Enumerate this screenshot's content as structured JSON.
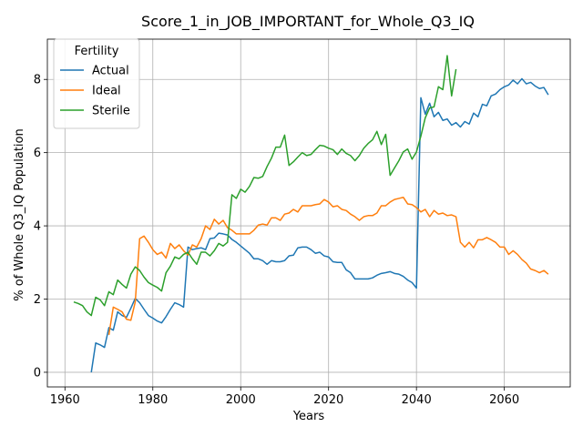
{
  "chart_data": {
    "type": "line",
    "title": "Score_1_in_JOB_IMPORTANT_for_Whole_Q3_IQ",
    "xlabel": "Years",
    "ylabel": "% of Whole Q3_IQ Population",
    "xlim": [
      1956,
      2075
    ],
    "ylim": [
      -0.4,
      9.1
    ],
    "xticks": [
      1960,
      1980,
      2000,
      2020,
      2040,
      2060
    ],
    "yticks": [
      0,
      2,
      4,
      6,
      8
    ],
    "grid": true,
    "legend": {
      "title": "Fertility",
      "position": "top-left"
    },
    "series": [
      {
        "name": "Actual",
        "color": "#1f77b4",
        "x": [
          1966,
          1967,
          1968,
          1969,
          1970,
          1971,
          1972,
          1973,
          1974,
          1975,
          1976,
          1977,
          1978,
          1979,
          1980,
          1981,
          1982,
          1983,
          1984,
          1985,
          1986,
          1987,
          1988,
          1989,
          1990,
          1991,
          1992,
          1993,
          1994,
          1995,
          1996,
          1997,
          1998,
          1999,
          2000,
          2001,
          2002,
          2003,
          2004,
          2005,
          2006,
          2007,
          2008,
          2009,
          2010,
          2011,
          2012,
          2013,
          2014,
          2015,
          2016,
          2017,
          2018,
          2019,
          2020,
          2021,
          2022,
          2023,
          2024,
          2025,
          2026,
          2027,
          2028,
          2029,
          2030,
          2031,
          2032,
          2033,
          2034,
          2035,
          2036,
          2037,
          2038,
          2039,
          2040,
          2041,
          2042,
          2043,
          2044,
          2045,
          2046,
          2047,
          2048,
          2049,
          2050,
          2051,
          2052,
          2053,
          2054,
          2055,
          2056,
          2057,
          2058,
          2059,
          2060,
          2061,
          2062,
          2063,
          2064,
          2065,
          2066,
          2067,
          2068,
          2069,
          2070
        ],
        "values": [
          0,
          0.8,
          0.75,
          0.68,
          1.22,
          1.15,
          1.65,
          1.55,
          1.5,
          1.75,
          2.02,
          1.9,
          1.72,
          1.55,
          1.48,
          1.4,
          1.35,
          1.52,
          1.72,
          1.9,
          1.85,
          1.78,
          3.42,
          3.35,
          3.38,
          3.4,
          3.35,
          3.65,
          3.67,
          3.8,
          3.78,
          3.75,
          3.63,
          3.55,
          3.45,
          3.35,
          3.25,
          3.1,
          3.1,
          3.05,
          2.95,
          3.05,
          3.02,
          3.02,
          3.05,
          3.18,
          3.2,
          3.4,
          3.42,
          3.42,
          3.35,
          3.25,
          3.28,
          3.18,
          3.15,
          3.02,
          3.0,
          3.0,
          2.8,
          2.72,
          2.55,
          2.55,
          2.55,
          2.55,
          2.58,
          2.65,
          2.7,
          2.72,
          2.75,
          2.7,
          2.68,
          2.62,
          2.52,
          2.45,
          2.3,
          7.5,
          7.05,
          7.35,
          6.98,
          7.1,
          6.88,
          6.92,
          6.75,
          6.82,
          6.7,
          6.85,
          6.78,
          7.08,
          6.98,
          7.32,
          7.28,
          7.55,
          7.6,
          7.72,
          7.8,
          7.85,
          7.98,
          7.88,
          8.02,
          7.88,
          7.92,
          7.82,
          7.75,
          7.78,
          7.58
        ]
      },
      {
        "name": "Ideal",
        "color": "#ff7f0e",
        "x": [
          1970,
          1971,
          1972,
          1973,
          1974,
          1975,
          1976,
          1977,
          1978,
          1979,
          1980,
          1981,
          1982,
          1983,
          1984,
          1985,
          1986,
          1987,
          1988,
          1989,
          1990,
          1991,
          1992,
          1993,
          1994,
          1995,
          1996,
          1997,
          1998,
          1999,
          2000,
          2001,
          2002,
          2003,
          2004,
          2005,
          2006,
          2007,
          2008,
          2009,
          2010,
          2011,
          2012,
          2013,
          2014,
          2015,
          2016,
          2017,
          2018,
          2019,
          2020,
          2021,
          2022,
          2023,
          2024,
          2025,
          2026,
          2027,
          2028,
          2029,
          2030,
          2031,
          2032,
          2033,
          2034,
          2035,
          2036,
          2037,
          2038,
          2039,
          2040,
          2041,
          2042,
          2043,
          2044,
          2045,
          2046,
          2047,
          2048,
          2049,
          2050,
          2051,
          2052,
          2053,
          2054,
          2055,
          2056,
          2057,
          2058,
          2059,
          2060,
          2061,
          2062,
          2063,
          2064,
          2065,
          2066,
          2067,
          2068,
          2069,
          2070
        ],
        "values": [
          1.02,
          1.78,
          1.72,
          1.65,
          1.45,
          1.42,
          1.92,
          3.65,
          3.72,
          3.55,
          3.35,
          3.22,
          3.28,
          3.12,
          3.52,
          3.38,
          3.48,
          3.32,
          3.2,
          3.48,
          3.42,
          3.65,
          4.0,
          3.9,
          4.18,
          4.05,
          4.15,
          3.95,
          3.88,
          3.78,
          3.78,
          3.78,
          3.78,
          3.88,
          4.02,
          4.05,
          4.02,
          4.22,
          4.22,
          4.15,
          4.32,
          4.35,
          4.45,
          4.38,
          4.55,
          4.55,
          4.55,
          4.58,
          4.6,
          4.72,
          4.65,
          4.52,
          4.55,
          4.45,
          4.42,
          4.32,
          4.25,
          4.15,
          4.25,
          4.28,
          4.28,
          4.35,
          4.55,
          4.55,
          4.65,
          4.72,
          4.75,
          4.78,
          4.6,
          4.58,
          4.5,
          4.38,
          4.45,
          4.25,
          4.42,
          4.32,
          4.35,
          4.28,
          4.3,
          4.25,
          3.55,
          3.42,
          3.55,
          3.4,
          3.62,
          3.62,
          3.68,
          3.62,
          3.55,
          3.42,
          3.42,
          3.22,
          3.32,
          3.22,
          3.08,
          2.98,
          2.82,
          2.78,
          2.72,
          2.78,
          2.68
        ]
      },
      {
        "name": "Sterile",
        "color": "#2ca02c",
        "x": [
          1962,
          1963,
          1964,
          1965,
          1966,
          1967,
          1968,
          1969,
          1970,
          1971,
          1972,
          1973,
          1974,
          1975,
          1976,
          1977,
          1978,
          1979,
          1980,
          1981,
          1982,
          1983,
          1984,
          1985,
          1986,
          1987,
          1988,
          1989,
          1990,
          1991,
          1992,
          1993,
          1994,
          1995,
          1996,
          1997,
          1998,
          1999,
          2000,
          2001,
          2002,
          2003,
          2004,
          2005,
          2006,
          2007,
          2008,
          2009,
          2010,
          2011,
          2012,
          2013,
          2014,
          2015,
          2016,
          2017,
          2018,
          2019,
          2020,
          2021,
          2022,
          2023,
          2024,
          2025,
          2026,
          2027,
          2028,
          2029,
          2030,
          2031,
          2032,
          2033,
          2034,
          2035,
          2036,
          2037,
          2038,
          2039,
          2040,
          2041,
          2042,
          2043,
          2044,
          2045,
          2046,
          2047,
          2048,
          2049
        ],
        "values": [
          1.92,
          1.88,
          1.82,
          1.65,
          1.55,
          2.05,
          1.98,
          1.82,
          2.2,
          2.12,
          2.52,
          2.4,
          2.3,
          2.68,
          2.88,
          2.78,
          2.6,
          2.45,
          2.38,
          2.32,
          2.22,
          2.72,
          2.9,
          3.15,
          3.1,
          3.22,
          3.28,
          3.1,
          2.95,
          3.28,
          3.28,
          3.18,
          3.32,
          3.52,
          3.45,
          3.55,
          4.85,
          4.75,
          5.0,
          4.92,
          5.08,
          5.32,
          5.3,
          5.35,
          5.62,
          5.85,
          6.15,
          6.15,
          6.48,
          5.65,
          5.75,
          5.88,
          6.0,
          5.92,
          5.95,
          6.08,
          6.2,
          6.18,
          6.12,
          6.08,
          5.95,
          6.1,
          5.98,
          5.92,
          5.78,
          5.92,
          6.12,
          6.25,
          6.35,
          6.58,
          6.22,
          6.5,
          5.38,
          5.58,
          5.78,
          6.02,
          6.1,
          5.82,
          6.02,
          6.45,
          6.95,
          7.22,
          7.25,
          7.8,
          7.72,
          8.65,
          7.55,
          8.28
        ]
      }
    ]
  }
}
